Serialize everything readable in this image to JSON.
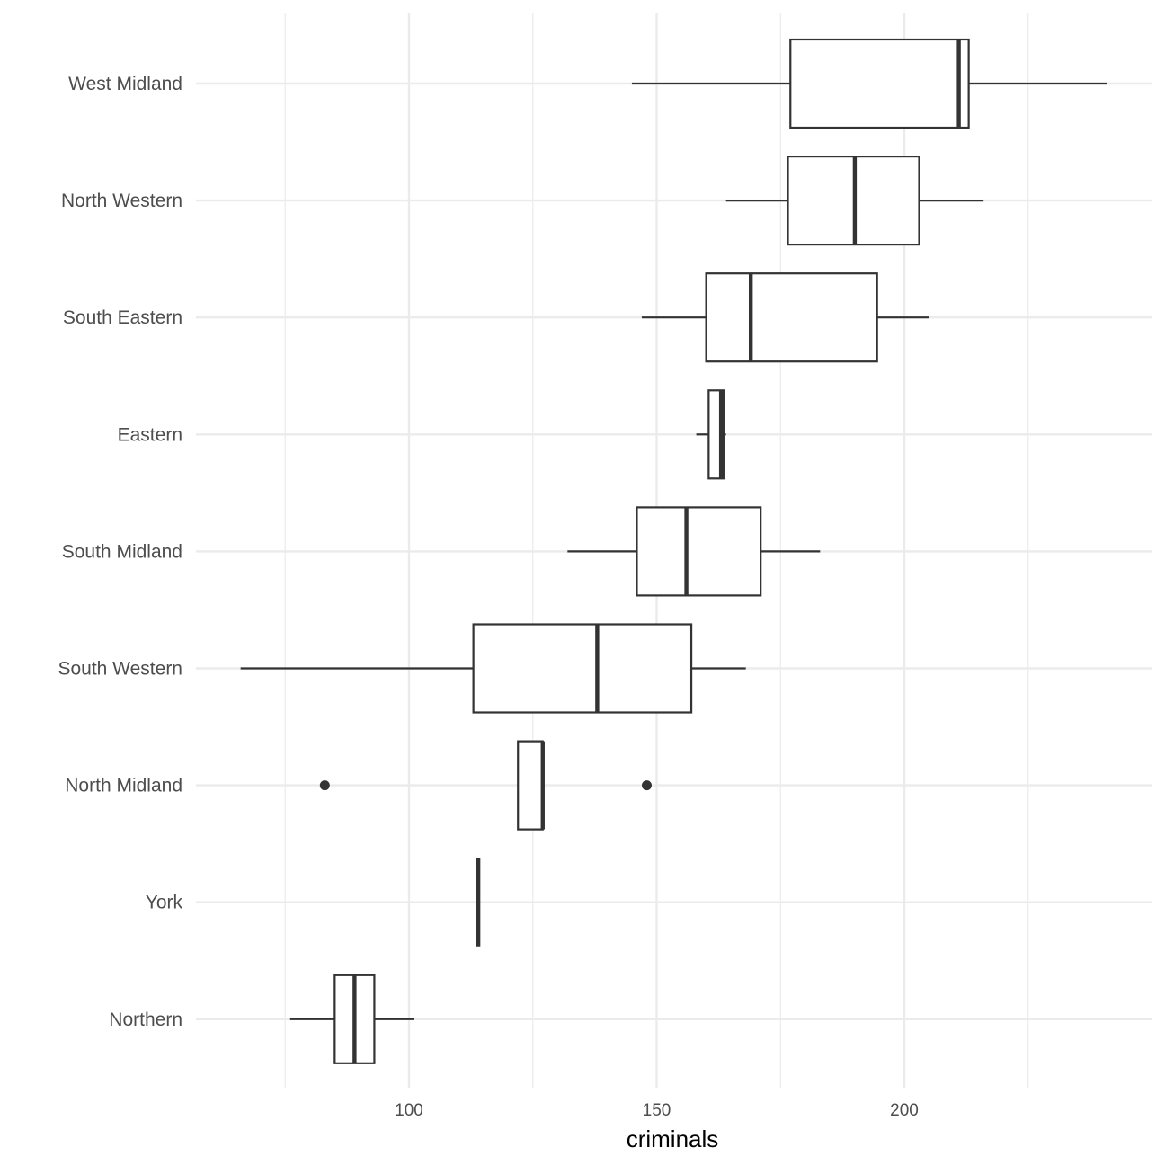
{
  "chart_data": {
    "type": "boxplot",
    "orientation": "horizontal",
    "xlabel": "criminals",
    "ylabel": "",
    "xlim": [
      62,
      247
    ],
    "x_ticks": [
      100,
      150,
      200
    ],
    "x_tick_labels": [
      "100",
      "150",
      "200"
    ],
    "grid": true,
    "categories": [
      "West Midland",
      "North Western",
      "South Eastern",
      "Eastern",
      "South Midland",
      "South Western",
      "North Midland",
      "York",
      "Northern"
    ],
    "boxes": [
      {
        "category": "West Midland",
        "whisker_low": 145,
        "q1": 177,
        "median": 211,
        "q3": 213,
        "whisker_high": 241,
        "outliers": []
      },
      {
        "category": "North Western",
        "whisker_low": 164,
        "q1": 176.5,
        "median": 190,
        "q3": 203,
        "whisker_high": 216,
        "outliers": []
      },
      {
        "category": "South Eastern",
        "whisker_low": 147,
        "q1": 160,
        "median": 169,
        "q3": 194.5,
        "whisker_high": 205,
        "outliers": []
      },
      {
        "category": "Eastern",
        "whisker_low": 158,
        "q1": 160.5,
        "median": 163,
        "q3": 163.5,
        "whisker_high": 164,
        "outliers": []
      },
      {
        "category": "South Midland",
        "whisker_low": 132,
        "q1": 146,
        "median": 156,
        "q3": 171,
        "whisker_high": 183,
        "outliers": []
      },
      {
        "category": "South Western",
        "whisker_low": 66,
        "q1": 113,
        "median": 138,
        "q3": 157,
        "whisker_high": 168,
        "outliers": []
      },
      {
        "category": "North Midland",
        "whisker_low": 122,
        "q1": 122,
        "median": 127,
        "q3": 127,
        "whisker_high": 127,
        "outliers": [
          83,
          148
        ]
      },
      {
        "category": "York",
        "whisker_low": 114,
        "q1": 114,
        "median": 114,
        "q3": 114,
        "whisker_high": 114,
        "outliers": []
      },
      {
        "category": "Northern",
        "whisker_low": 76,
        "q1": 85,
        "median": 89,
        "q3": 93,
        "whisker_high": 101,
        "outliers": []
      }
    ]
  }
}
